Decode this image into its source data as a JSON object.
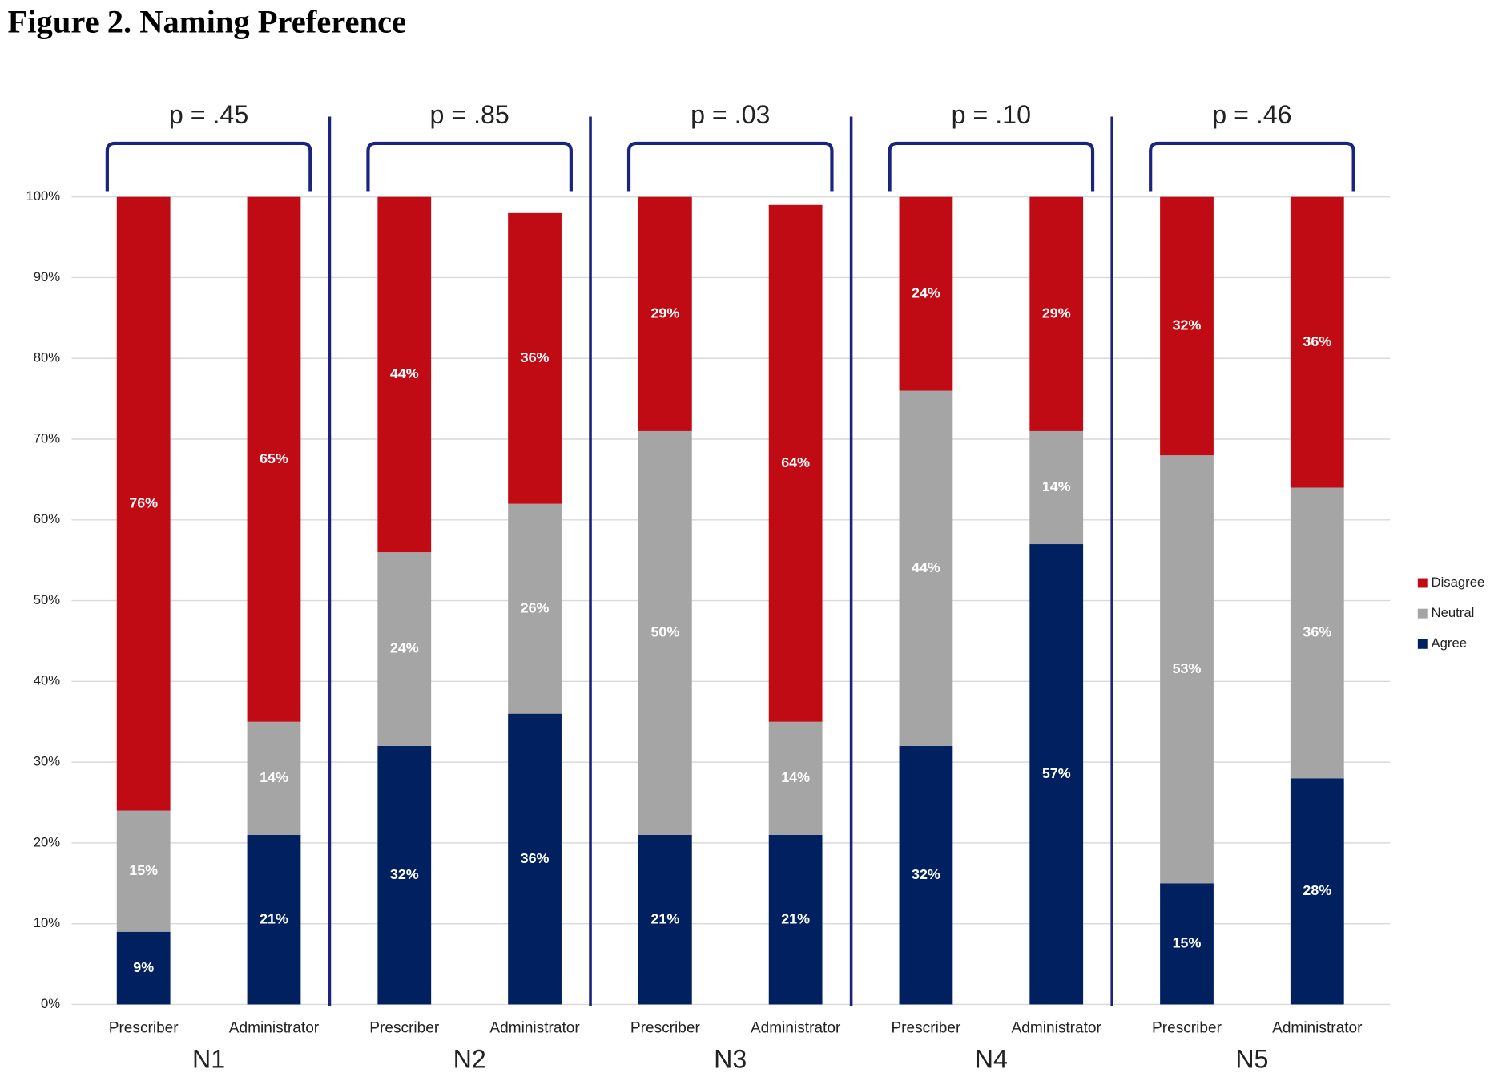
{
  "chart_data": {
    "type": "stacked-bar",
    "title": "Figure 2. Naming Preference",
    "categories": [
      "Prescriber",
      "Administrator",
      "Prescriber",
      "Administrator",
      "Prescriber",
      "Administrator",
      "Prescriber",
      "Administrator",
      "Prescriber",
      "Administrator"
    ],
    "groups": [
      {
        "name": "N1",
        "p_value": "p = .45"
      },
      {
        "name": "N2",
        "p_value": "p = .85"
      },
      {
        "name": "N3",
        "p_value": "p = .03"
      },
      {
        "name": "N4",
        "p_value": "p = .10"
      },
      {
        "name": "N5",
        "p_value": "p = .46"
      }
    ],
    "series": [
      {
        "name": "Agree",
        "color": "#002060",
        "values": [
          9,
          21,
          32,
          36,
          21,
          21,
          32,
          57,
          15,
          28
        ],
        "value_labels": [
          "9%",
          "21%",
          "32%",
          "36%",
          "21%",
          "21%",
          "32%",
          "57%",
          "15%",
          "28%"
        ]
      },
      {
        "name": "Neutral",
        "color": "#a5a5a5",
        "values": [
          15,
          14,
          24,
          26,
          50,
          14,
          44,
          14,
          53,
          36
        ],
        "value_labels": [
          "15%",
          "14%",
          "24%",
          "26%",
          "50%",
          "14%",
          "44%",
          "14%",
          "53%",
          "36%"
        ]
      },
      {
        "name": "Disagree",
        "color": "#c00a14",
        "values": [
          76,
          65,
          44,
          36,
          29,
          64,
          24,
          29,
          32,
          36
        ],
        "value_labels": [
          "76%",
          "65%",
          "44%",
          "36%",
          "29%",
          "64%",
          "24%",
          "29%",
          "32%",
          "36%"
        ]
      }
    ],
    "ylim": [
      0,
      100
    ],
    "yticks": [
      {
        "value": 0,
        "label": "0%"
      },
      {
        "value": 10,
        "label": "10%"
      },
      {
        "value": 20,
        "label": "20%"
      },
      {
        "value": 30,
        "label": "30%"
      },
      {
        "value": 40,
        "label": "40%"
      },
      {
        "value": 50,
        "label": "50%"
      },
      {
        "value": 60,
        "label": "60%"
      },
      {
        "value": 70,
        "label": "70%"
      },
      {
        "value": 80,
        "label": "80%"
      },
      {
        "value": 90,
        "label": "90%"
      },
      {
        "value": 100,
        "label": "100%"
      }
    ],
    "grid": true,
    "legend": "right"
  }
}
